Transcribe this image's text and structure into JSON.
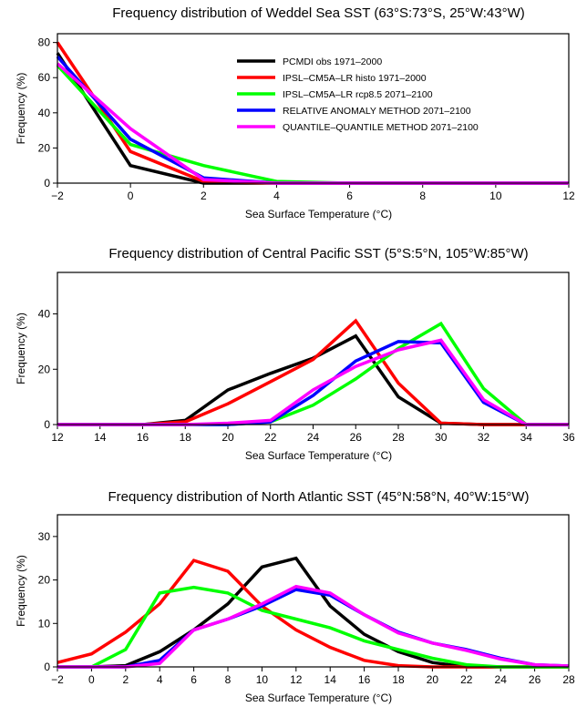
{
  "chart_data": [
    {
      "type": "line",
      "title": "Frequency distribution of Weddel Sea SST (63°S:73°S, 25°W:43°W)",
      "xlabel": "Sea Surface Temperature (°C)",
      "ylabel": "Frequency (%)",
      "xlim": [
        -2,
        12
      ],
      "ylim": [
        0,
        85
      ],
      "xticks": [
        "−2",
        "0",
        "2",
        "4",
        "6",
        "8",
        "10",
        "12"
      ],
      "yticks": [
        "0",
        "20",
        "40",
        "60",
        "80"
      ],
      "legend": "top-right",
      "series": [
        {
          "name": "PCMDI obs 1971–2000",
          "color": "#000000",
          "x": [
            -2,
            0,
            2,
            4,
            6,
            8,
            10,
            12
          ],
          "values": [
            74,
            10,
            0,
            0,
            0,
            0,
            0,
            0
          ]
        },
        {
          "name": "IPSL–CM5A–LR histo 1971–2000",
          "color": "#ff0000",
          "x": [
            -2,
            0,
            2,
            4,
            6,
            8,
            10,
            12
          ],
          "values": [
            80,
            18,
            1,
            0,
            0,
            0,
            0,
            0
          ]
        },
        {
          "name": "IPSL–CM5A–LR rcp8.5 2071–2100",
          "color": "#00ff00",
          "x": [
            -2,
            0,
            2,
            4,
            6,
            8,
            10,
            12
          ],
          "values": [
            67,
            22,
            10,
            1,
            0,
            0,
            0,
            0
          ]
        },
        {
          "name": "RELATIVE ANOMALY METHOD 2071–2100",
          "color": "#0000ff",
          "x": [
            -2,
            0,
            2,
            4,
            6,
            8,
            10,
            12
          ],
          "values": [
            72,
            25,
            3,
            0,
            0,
            0,
            0,
            0
          ]
        },
        {
          "name": "QUANTILE–QUANTILE METHOD 2071–2100",
          "color": "#ff00ff",
          "x": [
            -2,
            0,
            2,
            4,
            6,
            8,
            10,
            12
          ],
          "values": [
            68,
            31,
            2,
            0,
            0,
            0,
            0,
            0
          ]
        }
      ]
    },
    {
      "type": "line",
      "title": "Frequency distribution of Central Pacific SST (5°S:5°N, 105°W:85°W)",
      "xlabel": "Sea Surface Temperature (°C)",
      "ylabel": "Frequency (%)",
      "xlim": [
        12,
        36
      ],
      "ylim": [
        0,
        55
      ],
      "xticks": [
        "12",
        "14",
        "16",
        "18",
        "20",
        "22",
        "24",
        "26",
        "28",
        "30",
        "32",
        "34",
        "36"
      ],
      "yticks": [
        "0",
        "20",
        "40"
      ],
      "series": [
        {
          "name": "PCMDI obs 1971–2000",
          "color": "#000000",
          "x": [
            12,
            14,
            16,
            18,
            20,
            22,
            24,
            26,
            28,
            30,
            32,
            34,
            36
          ],
          "values": [
            0,
            0,
            0,
            1.5,
            12.5,
            18.5,
            24,
            32,
            10,
            0.5,
            0,
            0,
            0
          ]
        },
        {
          "name": "IPSL–CM5A–LR histo 1971–2000",
          "color": "#ff0000",
          "x": [
            12,
            14,
            16,
            18,
            20,
            22,
            24,
            26,
            28,
            30,
            32,
            34,
            36
          ],
          "values": [
            0,
            0,
            0,
            1,
            7.5,
            15.5,
            23.5,
            37.5,
            15,
            0.5,
            0,
            0,
            0
          ]
        },
        {
          "name": "IPSL–CM5A–LR rcp8.5 2071–2100",
          "color": "#00ff00",
          "x": [
            12,
            14,
            16,
            18,
            20,
            22,
            24,
            26,
            28,
            30,
            32,
            34,
            36
          ],
          "values": [
            0,
            0,
            0,
            0,
            0,
            1,
            7,
            16.5,
            27.5,
            36.5,
            13,
            0,
            0
          ]
        },
        {
          "name": "RELATIVE ANOMALY METHOD 2071–2100",
          "color": "#0000ff",
          "x": [
            12,
            14,
            16,
            18,
            20,
            22,
            24,
            26,
            28,
            30,
            32,
            34,
            36
          ],
          "values": [
            0,
            0,
            0,
            0,
            0,
            1,
            10.5,
            23,
            30,
            29.5,
            8,
            0,
            0
          ]
        },
        {
          "name": "QUANTILE–QUANTILE METHOD 2071–2100",
          "color": "#ff00ff",
          "x": [
            12,
            14,
            16,
            18,
            20,
            22,
            24,
            26,
            28,
            30,
            32,
            34,
            36
          ],
          "values": [
            0,
            0,
            0,
            0,
            0.5,
            1.5,
            12.5,
            21,
            27,
            30.5,
            9,
            0,
            0
          ]
        }
      ]
    },
    {
      "type": "line",
      "title": "Frequency distribution of North Atlantic SST (45°N:58°N, 40°W:15°W)",
      "xlabel": "Sea Surface Temperature (°C)",
      "ylabel": "Frequency (%)",
      "xlim": [
        -2,
        28
      ],
      "ylim": [
        0,
        35
      ],
      "xticks": [
        "−2",
        "0",
        "2",
        "4",
        "6",
        "8",
        "10",
        "12",
        "14",
        "16",
        "18",
        "20",
        "22",
        "24",
        "26",
        "28"
      ],
      "yticks": [
        "0",
        "10",
        "20",
        "30"
      ],
      "series": [
        {
          "name": "PCMDI obs 1971–2000",
          "color": "#000000",
          "x": [
            -2,
            0,
            2,
            4,
            6,
            8,
            10,
            12,
            14,
            16,
            18,
            20,
            22,
            24,
            26,
            28
          ],
          "values": [
            0,
            0,
            0.3,
            3.5,
            8.5,
            14.5,
            23,
            25,
            14,
            7.5,
            3.5,
            1,
            0,
            0,
            0,
            0
          ]
        },
        {
          "name": "IPSL–CM5A–LR histo 1971–2000",
          "color": "#ff0000",
          "x": [
            -2,
            0,
            2,
            4,
            6,
            8,
            10,
            12,
            14,
            16,
            18,
            20,
            22,
            24,
            26,
            28
          ],
          "values": [
            1,
            3,
            8,
            14.5,
            24.5,
            22,
            14,
            8.5,
            4.5,
            1.5,
            0.3,
            0,
            0,
            0,
            0,
            0
          ]
        },
        {
          "name": "IPSL–CM5A–LR rcp8.5 2071–2100",
          "color": "#00ff00",
          "x": [
            -2,
            0,
            2,
            4,
            6,
            8,
            10,
            12,
            14,
            16,
            18,
            20,
            22,
            24,
            26,
            28
          ],
          "values": [
            0,
            0,
            4,
            17,
            18.3,
            17,
            13,
            11,
            9,
            6,
            4,
            2,
            0.5,
            0,
            0,
            0
          ]
        },
        {
          "name": "RELATIVE ANOMALY METHOD 2071–2100",
          "color": "#0000ff",
          "x": [
            -2,
            0,
            2,
            4,
            6,
            8,
            10,
            12,
            14,
            16,
            18,
            20,
            22,
            24,
            26,
            28
          ],
          "values": [
            0,
            0,
            0,
            1.5,
            8.5,
            11,
            14,
            17.8,
            16.5,
            12,
            8,
            5.5,
            4,
            2,
            0.5,
            0.2
          ]
        },
        {
          "name": "QUANTILE–QUANTILE METHOD 2071–2100",
          "color": "#ff00ff",
          "x": [
            -2,
            0,
            2,
            4,
            6,
            8,
            10,
            12,
            14,
            16,
            18,
            20,
            22,
            24,
            26,
            28
          ],
          "values": [
            0,
            0,
            0,
            0.8,
            8.5,
            11,
            14.5,
            18.5,
            17,
            12,
            7.8,
            5.5,
            3.8,
            1.8,
            0.5,
            0.2
          ]
        }
      ]
    }
  ]
}
